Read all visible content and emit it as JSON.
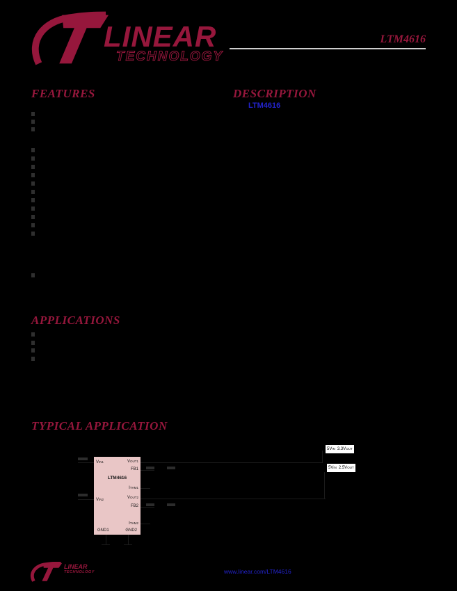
{
  "page": {
    "part_number": "LTM4616"
  },
  "colors": {
    "brand": "#96173C",
    "link": "#2323CC",
    "module_fill": "#E9C6C6",
    "rule": "#CFCFCF"
  },
  "logo": {
    "line1": "LINEAR",
    "line2": "TECHNOLOGY"
  },
  "sections": {
    "features": "FEATURES",
    "description": "DESCRIPTION",
    "applications": "APPLICATIONS",
    "typical_application": "TYPICAL APPLICATION"
  },
  "description": {
    "highlighted_part": "LTM4616"
  },
  "diagram": {
    "module_label": "LTM4616",
    "pins": {
      "left": [
        {
          "base": "V",
          "sub": "IN1"
        },
        {
          "base": "V",
          "sub": "IN2"
        }
      ],
      "right": [
        {
          "base": "V",
          "sub": "OUT1"
        },
        {
          "base": "FB1",
          "sub": ""
        },
        {
          "base": "I",
          "sub": "THM1"
        },
        {
          "base": "V",
          "sub": "OUT2"
        },
        {
          "base": "FB2",
          "sub": ""
        },
        {
          "base": "I",
          "sub": "THM2"
        }
      ],
      "bottom": [
        {
          "base": "GND1",
          "sub": ""
        },
        {
          "base": "GND2",
          "sub": ""
        }
      ]
    },
    "callouts": [
      {
        "v1": "5V",
        "s1": "IN",
        "v2": "3.3V",
        "s2": "OUT"
      },
      {
        "v1": "5V",
        "s1": "IN",
        "v2": "2.5V",
        "s2": "OUT"
      }
    ]
  },
  "footer": {
    "brand_line1": "LINEAR",
    "brand_line2": "TECHNOLOGY",
    "link": "www.linear.com/LTM4616"
  }
}
